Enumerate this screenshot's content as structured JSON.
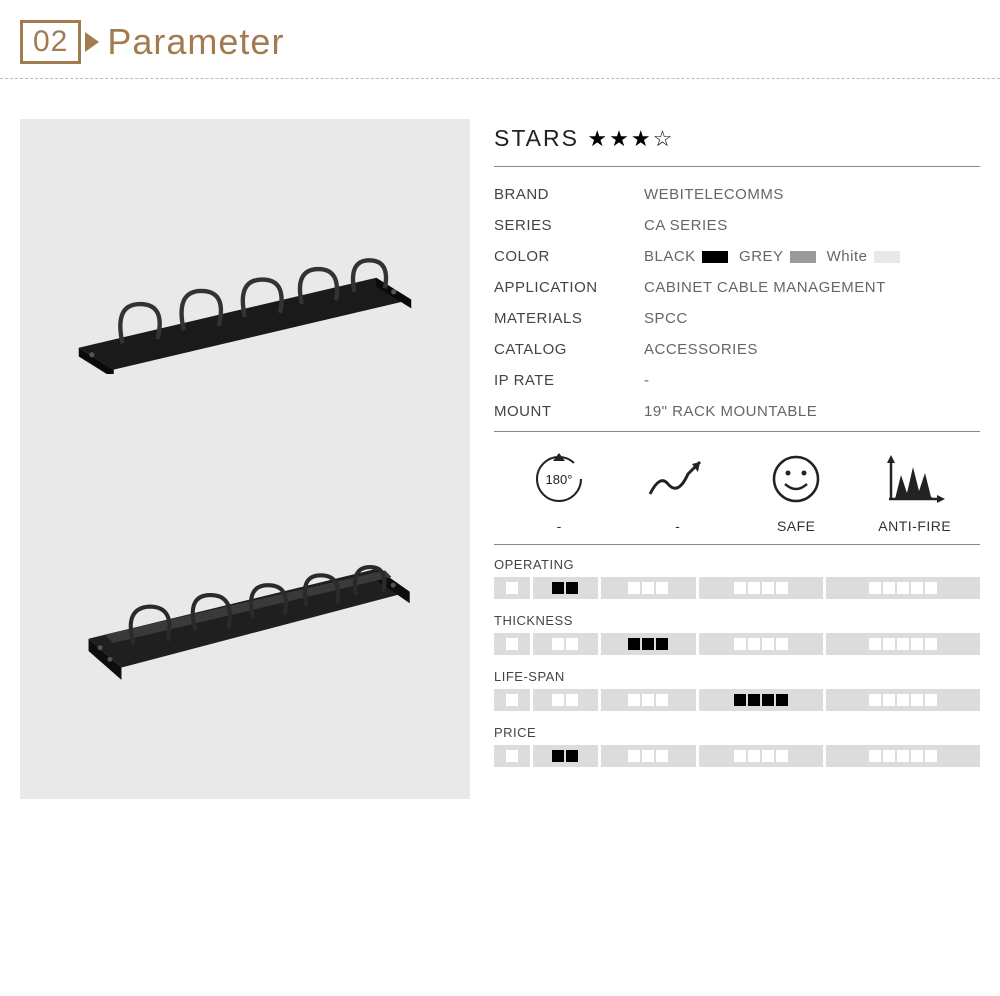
{
  "header": {
    "number": "02",
    "title": "Parameter",
    "accent_color": "#a37b50"
  },
  "stars": {
    "label": "STARS",
    "filled": 3,
    "total": 4
  },
  "specs": [
    {
      "label": "BRAND",
      "value": "WEBITELECOMMS"
    },
    {
      "label": "SERIES",
      "value": "CA SERIES"
    },
    {
      "label": "COLOR",
      "value": "",
      "colors": [
        {
          "name": "BLACK",
          "hex": "#000000"
        },
        {
          "name": "GREY",
          "hex": "#9a9a9a"
        },
        {
          "name": "White",
          "hex": "#e8e8e8"
        }
      ]
    },
    {
      "label": "APPLICATION",
      "value": "CABINET CABLE MANAGEMENT"
    },
    {
      "label": "MATERIALS",
      "value": "SPCC"
    },
    {
      "label": "CATALOG",
      "value": "ACCESSORIES"
    },
    {
      "label": "IP RATE",
      "value": "-"
    },
    {
      "label": "MOUNT",
      "value": "19\"  RACK MOUNTABLE"
    }
  ],
  "features": [
    {
      "icon": "rotate-180",
      "label": "-"
    },
    {
      "icon": "trend-up",
      "label": "-"
    },
    {
      "icon": "smiley",
      "label": "SAFE"
    },
    {
      "icon": "anti-fire",
      "label": "ANTI-FIRE"
    }
  ],
  "ratings": [
    {
      "label": "OPERATING",
      "active_segment": 2
    },
    {
      "label": "THICKNESS",
      "active_segment": 3
    },
    {
      "label": "LIFE-SPAN",
      "active_segment": 4
    },
    {
      "label": "PRICE",
      "active_segment": 2
    }
  ],
  "rating_segments": [
    1,
    2,
    3,
    4,
    5
  ],
  "image": {
    "background": "#e9e9e9",
    "product_type": "1U Cable Management Panel with 5 metal rings",
    "variant_count": 2
  },
  "styling": {
    "body_bg": "#ffffff",
    "text_color": "#555555",
    "divider_color": "#bbbbbb",
    "bar_bg": "#dcdcdc",
    "cell_empty": "#ffffff",
    "cell_filled": "#000000"
  }
}
